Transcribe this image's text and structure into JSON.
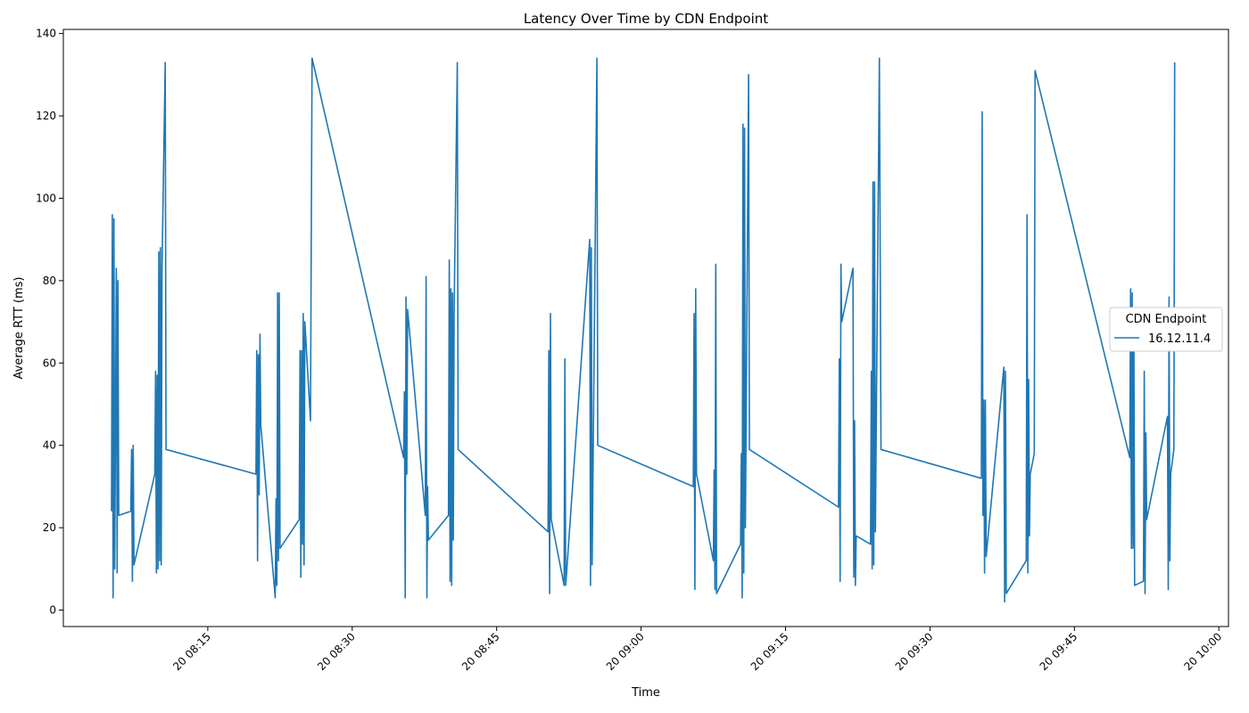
{
  "chart_data": {
    "type": "line",
    "title": "Latency Over Time by CDN Endpoint",
    "xlabel": "Time",
    "ylabel": "Average RTT (ms)",
    "x_axis": "time",
    "xlim": [
      "2024-05-20 08:00",
      "2024-05-20 10:01"
    ],
    "ylim": [
      -4,
      141
    ],
    "x_ticks": [
      {
        "value": "08:15",
        "label": "20 08:15"
      },
      {
        "value": "08:30",
        "label": "20 08:30"
      },
      {
        "value": "08:45",
        "label": "20 08:45"
      },
      {
        "value": "09:00",
        "label": "20 09:00"
      },
      {
        "value": "09:15",
        "label": "20 09:15"
      },
      {
        "value": "09:30",
        "label": "20 09:30"
      },
      {
        "value": "09:45",
        "label": "20 09:45"
      },
      {
        "value": "10:00",
        "label": "20 10:00"
      }
    ],
    "y_ticks": [
      0,
      20,
      40,
      60,
      80,
      100,
      120,
      140
    ],
    "grid": false,
    "legend": {
      "title": "CDN Endpoint",
      "position": "right"
    },
    "series": [
      {
        "name": "16.12.11.4",
        "color": "#1f77b4",
        "points": [
          [
            "08:05:00",
            24
          ],
          [
            "08:05:05",
            96
          ],
          [
            "08:05:10",
            3
          ],
          [
            "08:05:15",
            95
          ],
          [
            "08:05:20",
            10
          ],
          [
            "08:05:30",
            83
          ],
          [
            "08:05:35",
            9
          ],
          [
            "08:05:40",
            80
          ],
          [
            "08:05:45",
            23
          ],
          [
            "08:07:00",
            24
          ],
          [
            "08:07:05",
            39
          ],
          [
            "08:07:10",
            7
          ],
          [
            "08:07:15",
            40
          ],
          [
            "08:07:20",
            11
          ],
          [
            "08:09:30",
            33
          ],
          [
            "08:09:35",
            58
          ],
          [
            "08:09:40",
            9
          ],
          [
            "08:09:45",
            57
          ],
          [
            "08:09:50",
            10
          ],
          [
            "08:09:55",
            87
          ],
          [
            "08:10:00",
            12
          ],
          [
            "08:10:05",
            88
          ],
          [
            "08:10:10",
            11
          ],
          [
            "08:10:15",
            83
          ],
          [
            "08:10:35",
            133
          ],
          [
            "08:10:40",
            39
          ],
          [
            "08:20:00",
            33
          ],
          [
            "08:20:05",
            63
          ],
          [
            "08:20:10",
            12
          ],
          [
            "08:20:15",
            62
          ],
          [
            "08:20:20",
            28
          ],
          [
            "08:20:25",
            67
          ],
          [
            "08:20:30",
            45
          ],
          [
            "08:22:00",
            3
          ],
          [
            "08:22:05",
            27
          ],
          [
            "08:22:10",
            6
          ],
          [
            "08:22:15",
            77
          ],
          [
            "08:22:20",
            12
          ],
          [
            "08:22:25",
            77
          ],
          [
            "08:22:30",
            15
          ],
          [
            "08:24:30",
            22
          ],
          [
            "08:24:35",
            63
          ],
          [
            "08:24:40",
            8
          ],
          [
            "08:24:45",
            63
          ],
          [
            "08:24:50",
            16
          ],
          [
            "08:24:55",
            72
          ],
          [
            "08:25:00",
            11
          ],
          [
            "08:25:05",
            70
          ],
          [
            "08:25:40",
            46
          ],
          [
            "08:25:50",
            134
          ],
          [
            "08:35:20",
            37
          ],
          [
            "08:35:25",
            53
          ],
          [
            "08:35:30",
            3
          ],
          [
            "08:35:35",
            76
          ],
          [
            "08:35:40",
            33
          ],
          [
            "08:35:45",
            73
          ],
          [
            "08:37:35",
            23
          ],
          [
            "08:37:40",
            81
          ],
          [
            "08:37:45",
            3
          ],
          [
            "08:37:50",
            30
          ],
          [
            "08:37:55",
            17
          ],
          [
            "08:40:00",
            23
          ],
          [
            "08:40:05",
            85
          ],
          [
            "08:40:10",
            7
          ],
          [
            "08:40:15",
            78
          ],
          [
            "08:40:20",
            6
          ],
          [
            "08:40:25",
            77
          ],
          [
            "08:40:30",
            17
          ],
          [
            "08:40:35",
            72
          ],
          [
            "08:40:55",
            133
          ],
          [
            "08:41:00",
            39
          ],
          [
            "08:50:20",
            19
          ],
          [
            "08:50:25",
            63
          ],
          [
            "08:50:30",
            4
          ],
          [
            "08:50:35",
            72
          ],
          [
            "08:50:40",
            22
          ],
          [
            "08:52:00",
            6
          ],
          [
            "08:52:05",
            61
          ],
          [
            "08:52:10",
            6
          ],
          [
            "08:54:40",
            90
          ],
          [
            "08:54:45",
            6
          ],
          [
            "08:54:50",
            88
          ],
          [
            "08:54:55",
            11
          ],
          [
            "08:55:25",
            134
          ],
          [
            "08:55:30",
            40
          ],
          [
            "09:05:25",
            30
          ],
          [
            "09:05:30",
            72
          ],
          [
            "09:05:35",
            5
          ],
          [
            "09:05:40",
            78
          ],
          [
            "09:05:45",
            33
          ],
          [
            "09:07:30",
            12
          ],
          [
            "09:07:35",
            34
          ],
          [
            "09:07:40",
            5
          ],
          [
            "09:07:45",
            84
          ],
          [
            "09:07:50",
            4
          ],
          [
            "09:10:20",
            16
          ],
          [
            "09:10:25",
            38
          ],
          [
            "09:10:30",
            3
          ],
          [
            "09:10:35",
            118
          ],
          [
            "09:10:40",
            9
          ],
          [
            "09:10:45",
            117
          ],
          [
            "09:10:50",
            20
          ],
          [
            "09:11:10",
            130
          ],
          [
            "09:11:15",
            39
          ],
          [
            "09:20:30",
            25
          ],
          [
            "09:20:35",
            61
          ],
          [
            "09:20:40",
            7
          ],
          [
            "09:20:45",
            84
          ],
          [
            "09:20:50",
            70
          ],
          [
            "09:22:00",
            83
          ],
          [
            "09:22:05",
            8
          ],
          [
            "09:22:10",
            46
          ],
          [
            "09:22:15",
            6
          ],
          [
            "09:22:20",
            18
          ],
          [
            "09:23:50",
            16
          ],
          [
            "09:23:55",
            58
          ],
          [
            "09:24:00",
            10
          ],
          [
            "09:24:05",
            104
          ],
          [
            "09:24:10",
            11
          ],
          [
            "09:24:15",
            104
          ],
          [
            "09:24:20",
            19
          ],
          [
            "09:24:45",
            134
          ],
          [
            "09:24:55",
            39
          ],
          [
            "09:35:20",
            32
          ],
          [
            "09:35:25",
            121
          ],
          [
            "09:35:30",
            23
          ],
          [
            "09:35:35",
            51
          ],
          [
            "09:35:40",
            9
          ],
          [
            "09:35:45",
            51
          ],
          [
            "09:35:50",
            13
          ],
          [
            "09:37:40",
            59
          ],
          [
            "09:37:45",
            2
          ],
          [
            "09:37:50",
            58
          ],
          [
            "09:37:55",
            4
          ],
          [
            "09:40:00",
            12
          ],
          [
            "09:40:05",
            96
          ],
          [
            "09:40:10",
            9
          ],
          [
            "09:40:15",
            56
          ],
          [
            "09:40:20",
            18
          ],
          [
            "09:40:25",
            33
          ],
          [
            "09:40:50",
            38
          ],
          [
            "09:40:55",
            131
          ],
          [
            "09:50:45",
            37
          ],
          [
            "09:50:50",
            78
          ],
          [
            "09:50:55",
            15
          ],
          [
            "09:51:00",
            77
          ],
          [
            "09:51:05",
            15
          ],
          [
            "09:51:10",
            73
          ],
          [
            "09:51:15",
            6
          ],
          [
            "09:52:10",
            7
          ],
          [
            "09:52:15",
            58
          ],
          [
            "09:52:20",
            4
          ],
          [
            "09:52:25",
            43
          ],
          [
            "09:52:30",
            22
          ],
          [
            "09:54:40",
            47
          ],
          [
            "09:54:45",
            5
          ],
          [
            "09:54:50",
            76
          ],
          [
            "09:54:55",
            12
          ],
          [
            "09:55:00",
            33
          ],
          [
            "09:55:20",
            39
          ],
          [
            "09:55:25",
            133
          ]
        ]
      }
    ]
  }
}
